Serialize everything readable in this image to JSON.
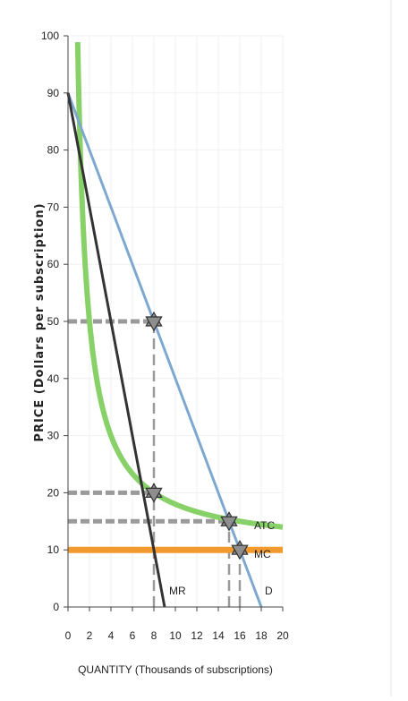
{
  "chart_data": {
    "type": "line",
    "xlabel": "QUANTITY (Thousands of subscriptions)",
    "ylabel": "PRICE (Dollars per subscription)",
    "xlim": [
      0,
      20
    ],
    "ylim": [
      0,
      100
    ],
    "x_ticks": [
      0,
      2,
      4,
      6,
      8,
      10,
      12,
      14,
      16,
      18,
      20
    ],
    "y_ticks": [
      0,
      10,
      20,
      30,
      40,
      50,
      60,
      70,
      80,
      90,
      100
    ],
    "grid": true,
    "series": [
      {
        "name": "D",
        "color": "#7fa8d0",
        "points": [
          [
            0,
            90
          ],
          [
            18,
            0
          ]
        ]
      },
      {
        "name": "MR",
        "color": "#333333",
        "points": [
          [
            0,
            90
          ],
          [
            9,
            0
          ]
        ]
      },
      {
        "name": "ATC",
        "color": "#88d168",
        "function": "ATC = 10 + 80/Q",
        "x_start": 0.9,
        "x_end": 20
      },
      {
        "name": "MC",
        "color": "#f29a2e",
        "points": [
          [
            0,
            10
          ],
          [
            20,
            10
          ]
        ]
      }
    ],
    "dashed_guides": [
      {
        "from": [
          0,
          50
        ],
        "to": [
          8,
          50
        ]
      },
      {
        "from": [
          0,
          20
        ],
        "to": [
          8,
          20
        ]
      },
      {
        "from": [
          0,
          15
        ],
        "to": [
          15,
          15
        ]
      },
      {
        "from": [
          0,
          10
        ],
        "to": [
          16,
          10
        ]
      },
      {
        "from": [
          8,
          0
        ],
        "to": [
          8,
          50
        ]
      },
      {
        "from": [
          15,
          0
        ],
        "to": [
          15,
          15
        ]
      },
      {
        "from": [
          16,
          0
        ],
        "to": [
          16,
          10
        ]
      }
    ],
    "star_markers": [
      [
        8,
        50
      ],
      [
        8,
        20
      ],
      [
        15,
        15
      ],
      [
        16,
        10
      ]
    ],
    "labels": {
      "d": "D",
      "mr": "MR",
      "atc": "ATC",
      "mc": "MC"
    }
  }
}
